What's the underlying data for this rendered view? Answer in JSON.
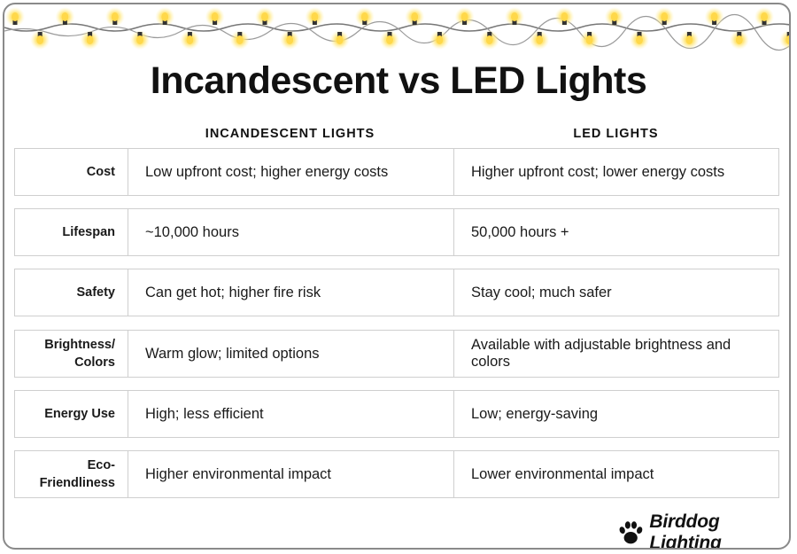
{
  "title": "Incandescent vs LED Lights",
  "columns": {
    "incandescent": "INCANDESCENT LIGHTS",
    "led": "LED LIGHTS"
  },
  "rows": [
    {
      "label": "Cost",
      "incandescent": "Low upfront cost; higher energy costs",
      "led": "Higher upfront cost; lower energy costs"
    },
    {
      "label": "Lifespan",
      "incandescent": "~10,000 hours",
      "led": "50,000 hours +"
    },
    {
      "label": "Safety",
      "incandescent": "Can get hot; higher fire risk",
      "led": "Stay cool; much safer"
    },
    {
      "label": "Brightness/ Colors",
      "incandescent": "Warm glow; limited options",
      "led": "Available with adjustable brightness and colors"
    },
    {
      "label": "Energy Use",
      "incandescent": "High; less efficient",
      "led": "Low; energy-saving"
    },
    {
      "label": "Eco- Friendliness",
      "incandescent": "Higher environmental impact",
      "led": "Lower environmental impact"
    }
  ],
  "brand": {
    "name": "Birddog Lighting",
    "icon": "paw-print-icon"
  },
  "decoration": {
    "icon": "string-lights-icon",
    "bulb_color": "#ffd84a",
    "glow_color": "#fff3b0",
    "wire_color": "#777777"
  }
}
